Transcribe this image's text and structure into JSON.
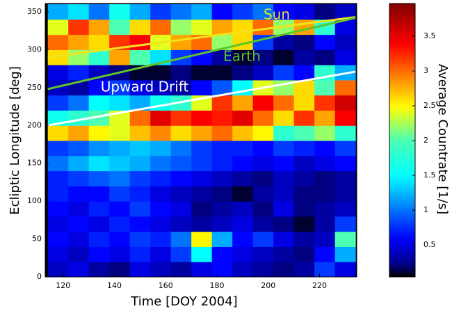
{
  "chart_data": {
    "type": "heatmap",
    "xlabel": "Time [DOY 2004]",
    "ylabel": "Ecliptic Longitude [deg]",
    "colorbar_label": "Average Countrate [1/s]",
    "colormap": "jet",
    "xlim": [
      113,
      234.5
    ],
    "ylim": [
      0,
      361
    ],
    "clim": [
      0.04,
      3.97
    ],
    "xticks": [
      120,
      140,
      160,
      180,
      200,
      220
    ],
    "yticks": [
      0,
      50,
      100,
      150,
      200,
      250,
      300,
      350
    ],
    "cticks": [
      0.5,
      1,
      1.5,
      2,
      2.5,
      3,
      3.5
    ],
    "x_edges": [
      114,
      122,
      130,
      138,
      146,
      154,
      162,
      170,
      178,
      186,
      194,
      202,
      210,
      218,
      226,
      234
    ],
    "y_edges": [
      0,
      20,
      40,
      60,
      80,
      100,
      120,
      140,
      160,
      180,
      200,
      220,
      240,
      260,
      280,
      300,
      320,
      340,
      360
    ],
    "values": [
      [
        0.4,
        0.5,
        0.3,
        0.2,
        0.5,
        0.4,
        0.3,
        0.5,
        0.6,
        0.4,
        0.3,
        0.2,
        0.3,
        0.8,
        0.5
      ],
      [
        0.5,
        0.4,
        0.6,
        0.5,
        0.7,
        0.5,
        0.8,
        1.5,
        0.6,
        0.5,
        0.4,
        0.3,
        0.2,
        0.6,
        1.2
      ],
      [
        0.6,
        0.5,
        0.7,
        0.6,
        0.8,
        0.7,
        1.0,
        2.5,
        1.2,
        0.6,
        0.8,
        0.5,
        0.3,
        0.4,
        2.0
      ],
      [
        0.5,
        0.6,
        0.5,
        0.7,
        0.6,
        0.5,
        0.4,
        0.3,
        0.4,
        0.5,
        0.3,
        0.2,
        0.1,
        0.3,
        0.8
      ],
      [
        0.6,
        0.5,
        0.7,
        0.6,
        0.8,
        0.6,
        0.5,
        0.2,
        0.3,
        0.4,
        0.2,
        0.5,
        0.2,
        0.3,
        0.4
      ],
      [
        0.7,
        0.6,
        0.6,
        0.8,
        0.7,
        0.5,
        0.4,
        0.3,
        0.2,
        0.1,
        0.3,
        0.4,
        0.2,
        0.2,
        0.3
      ],
      [
        0.7,
        0.8,
        0.9,
        1.0,
        0.8,
        0.7,
        0.6,
        0.5,
        0.4,
        0.3,
        0.2,
        0.4,
        0.3,
        0.2,
        0.3
      ],
      [
        1.0,
        1.2,
        1.4,
        1.3,
        1.2,
        1.0,
        0.9,
        0.8,
        0.7,
        0.6,
        0.5,
        0.6,
        0.4,
        0.5,
        0.6
      ],
      [
        0.8,
        0.9,
        1.1,
        1.2,
        1.3,
        1.2,
        1.0,
        0.8,
        0.7,
        0.7,
        0.6,
        0.8,
        0.7,
        0.6,
        0.8
      ],
      [
        2.6,
        2.8,
        2.5,
        2.4,
        2.7,
        2.9,
        2.6,
        2.8,
        3.0,
        2.7,
        2.5,
        1.8,
        2.0,
        2.2,
        1.8
      ],
      [
        1.6,
        1.8,
        2.0,
        2.4,
        3.0,
        3.5,
        3.2,
        3.4,
        3.3,
        3.5,
        3.0,
        2.6,
        3.2,
        2.8,
        3.4
      ],
      [
        0.8,
        1.0,
        1.5,
        1.4,
        1.2,
        1.6,
        1.8,
        2.4,
        3.2,
        2.8,
        3.4,
        3.0,
        2.6,
        3.2,
        3.6
      ],
      [
        0.4,
        0.3,
        0.6,
        0.8,
        0.5,
        0.4,
        0.3,
        0.6,
        0.9,
        1.5,
        2.4,
        2.2,
        2.6,
        2.0,
        3.0
      ],
      [
        0.5,
        0.7,
        0.4,
        0.2,
        0.1,
        0.1,
        0.2,
        0.1,
        0.1,
        0.2,
        0.4,
        0.8,
        0.6,
        1.8,
        1.2
      ],
      [
        2.6,
        2.2,
        1.8,
        2.8,
        2.0,
        1.4,
        0.8,
        0.6,
        0.3,
        0.1,
        0.2,
        0.1,
        0.3,
        0.2,
        0.5
      ],
      [
        3.0,
        2.8,
        2.6,
        3.2,
        3.4,
        2.4,
        2.8,
        3.0,
        2.2,
        2.6,
        0.8,
        0.3,
        0.2,
        0.6,
        0.4
      ],
      [
        2.4,
        3.2,
        2.8,
        2.0,
        2.6,
        3.0,
        2.2,
        2.4,
        2.8,
        2.6,
        3.0,
        2.2,
        2.8,
        1.8,
        0.5
      ],
      [
        1.2,
        1.4,
        1.0,
        1.6,
        1.2,
        0.8,
        1.0,
        1.2,
        0.6,
        0.8,
        1.0,
        0.6,
        0.5,
        0.2,
        0.4
      ]
    ],
    "lines": [
      {
        "name": "Sun",
        "color": "#f2e41c",
        "x": [
          114,
          234
        ],
        "y": [
          290,
          343
        ]
      },
      {
        "name": "Earth",
        "color": "#5fc42a",
        "x": [
          114,
          234
        ],
        "y": [
          248,
          342
        ]
      },
      {
        "name": "Upward Drift",
        "color": "#ffffff",
        "x": [
          114,
          234
        ],
        "y": [
          200,
          271
        ]
      }
    ]
  }
}
